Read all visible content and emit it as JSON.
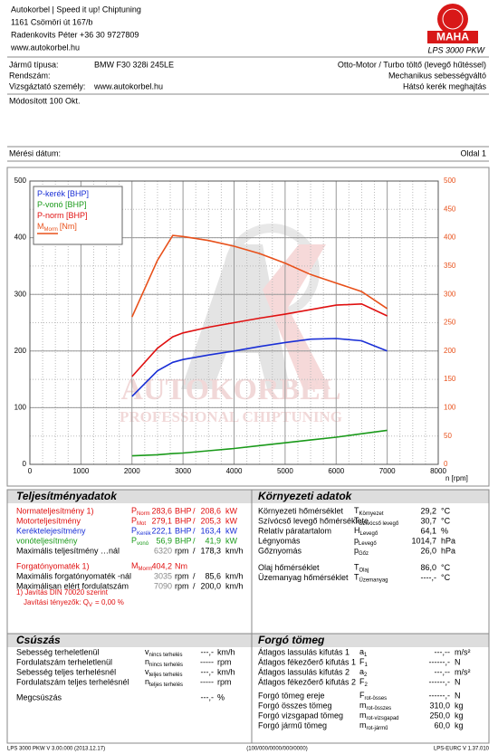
{
  "header": {
    "lines": [
      "Autokorbel | Speed it up! Chiptuning",
      "1161 Csömöri út 167/b",
      "Radenkovits Péter +36 30 9727809",
      "www.autokorbel.hu"
    ],
    "logo_brand": "MAHA",
    "logo_model": "LPS 3000 PKW"
  },
  "vehicle": {
    "left": [
      {
        "label": "Jármű típusa:",
        "value": "BMW F30 328i 245LE"
      },
      {
        "label": "Rendszám:"
      },
      {
        "label": "Vizsgáztató személy:",
        "value": "www.autokorbel.hu"
      }
    ],
    "right": [
      "Otto-Motor / Turbo töltő (levegő hűtéssel)",
      "Mechanikus sebességváltó",
      "Hátsó kerék meghajtás"
    ]
  },
  "note": "Módosított 100 Okt.",
  "measurement": {
    "label": "Mérési dátum:",
    "page": "Oldal 1"
  },
  "watermark": {
    "title": "AUTOKORBEL",
    "subtitle": "PROFESSIONAL CHIPTUNING"
  },
  "chart_data": {
    "type": "line",
    "x_label": "n [rpm]",
    "xlim": [
      0,
      8000
    ],
    "xticks": [
      0,
      1000,
      2000,
      3000,
      4000,
      5000,
      6000,
      7000,
      8000
    ],
    "ylim": [
      0,
      500
    ],
    "yticks": [
      0,
      100,
      200,
      300,
      400,
      500
    ],
    "y2lim": [
      0,
      500
    ],
    "y2ticks": [
      0,
      50,
      100,
      150,
      200,
      250,
      300,
      350,
      400,
      450,
      500
    ],
    "y2_color": "#e8501a",
    "grid": true,
    "x": [
      2000,
      2500,
      2800,
      3000,
      3500,
      4000,
      4500,
      5000,
      5500,
      6000,
      6500,
      7000
    ],
    "series": [
      {
        "name": "P-kerék [BHP]",
        "color": "#1a2fd6",
        "values": [
          120,
          165,
          180,
          185,
          193,
          200,
          208,
          215,
          221,
          222,
          218,
          200
        ]
      },
      {
        "name": "P-vonó [BHP]",
        "color": "#1a9a1a",
        "values": [
          15,
          17,
          19,
          20,
          24,
          28,
          33,
          38,
          43,
          48,
          54,
          60
        ]
      },
      {
        "name": "P-norm [BHP]",
        "color": "#e01010",
        "values": [
          155,
          205,
          225,
          232,
          242,
          250,
          258,
          265,
          273,
          281,
          283,
          262
        ]
      },
      {
        "name": "M",
        "name_sub": "Morm",
        "name_unit": "[Nm]",
        "color": "#e8501a",
        "axis": "y2",
        "values": [
          260,
          360,
          404,
          402,
          395,
          385,
          372,
          355,
          335,
          320,
          305,
          275
        ]
      }
    ]
  },
  "power": {
    "title": "Teljesítményadatok",
    "rows": [
      {
        "label": "Normateljesítmény 1)",
        "color": "#e01010",
        "sym": "P",
        "sub": "Norm",
        "v1": "283,6",
        "u1": "BHP",
        "sep": "/",
        "v2": "208,6",
        "u2": "kW"
      },
      {
        "label": "Motorteljesítmény",
        "color": "#e01010",
        "sym": "P",
        "sub": "Mot",
        "v1": "279,1",
        "u1": "BHP",
        "sep": "/",
        "v2": "205,3",
        "u2": "kW"
      },
      {
        "label": "Keréktelejesítmény",
        "color": "#1a2fd6",
        "sym": "P",
        "sub": "Kerék",
        "v1": "222,1",
        "u1": "BHP",
        "sep": "/",
        "v2": "163,4",
        "u2": "kW"
      },
      {
        "label": "vonóteljesítmény",
        "color": "#1a9a1a",
        "sym": "P",
        "sub": "vonó",
        "v1": "56,9",
        "u1": "BHP",
        "sep": "/",
        "v2": "41,9",
        "u2": "kW"
      },
      {
        "label": "Maximális teljesítmény …nál",
        "color": "#000000",
        "value_color": "#888888",
        "v1": "6320",
        "u1": "rpm",
        "sep": "/",
        "v2": "178,3",
        "u2": "km/h"
      },
      {
        "label": "Forgatónyomaték 1)",
        "color": "#e01010",
        "sym": "M",
        "sub": "Morm",
        "v1": "404,2",
        "u1": "Nm"
      },
      {
        "label": "Maximális forgatónyomaték -nál",
        "color": "#000000",
        "value_color": "#888888",
        "v1": "3035",
        "u1": "rpm",
        "sep": "/",
        "v2": "85,6",
        "u2": "km/h"
      },
      {
        "label": "Maximálisan elért fordulatszám",
        "color": "#000000",
        "value_color": "#888888",
        "v1": "7090",
        "u1": "rpm",
        "sep": "/",
        "v2": "200,0",
        "u2": "km/h"
      }
    ],
    "footnote": "1) Javítás DIN 70020 szerint",
    "factor": {
      "text": "Javítási tényezők: Q",
      "sub": "V",
      "rest": "=   0,00 %"
    }
  },
  "environment": {
    "title": "Környezeti adatok",
    "rows": [
      {
        "label": "Környezeti hőmérséklet",
        "sym": "T",
        "sub": "Környezet",
        "v1": "29,2",
        "u1": "°C"
      },
      {
        "label": "Szívócső levegő hőmérséklete",
        "sym": "T",
        "sub": "Szívócső levegő",
        "v1": "30,7",
        "u1": "°C"
      },
      {
        "label": "Relatív páratartalom",
        "sym": "H",
        "sub": "Levegő",
        "v1": "64,1",
        "u1": "%"
      },
      {
        "label": "Légnyomás",
        "sym": "p",
        "sub": "Levegő",
        "v1": "1014,7",
        "u1": "hPa"
      },
      {
        "label": "Gőznyomás",
        "sym": "p",
        "sub": "Gőz",
        "v1": "26,0",
        "u1": "hPa"
      },
      {
        "label": "Olaj hőmérséklet",
        "sym": "T",
        "sub": "Olaj",
        "v1": "86,0",
        "u1": "°C"
      },
      {
        "label": "Üzemanyag hőmérséklet",
        "sym": "T",
        "sub": "Üzemanyag",
        "v1": "----,-",
        "u1": "°C"
      }
    ]
  },
  "slip": {
    "title": "Csúszás",
    "rows": [
      {
        "label": "Sebesség terheletlenül",
        "sym": "v",
        "sub": "nincs terhelés",
        "v1": "---,-",
        "u1": "km/h"
      },
      {
        "label": "Fordulatszám terheletlenül",
        "sym": "n",
        "sub": "nincs terhelés",
        "v1": "-----",
        "u1": "rpm"
      },
      {
        "label": "Sebesség teljes terhelésnél",
        "sym": "v",
        "sub": "teljes terhelés",
        "v1": "---,-",
        "u1": "km/h"
      },
      {
        "label": "Fordulatszám teljes terhelésnél",
        "sym": "n",
        "sub": "teljes terhelés",
        "v1": "-----",
        "u1": "rpm"
      },
      {
        "label": "Megcsúszás",
        "v1": "---,-",
        "u1": "%"
      }
    ]
  },
  "mass": {
    "title": "Forgó tömeg",
    "rows": [
      {
        "label": "Átlagos lassulás kifutás 1",
        "sym": "a",
        "sub": "1",
        "v1": "---,--",
        "u1": "m/s²"
      },
      {
        "label": "Átlagos fékezőerő kifutás 1",
        "sym": "F",
        "sub": "1",
        "v1": "------,-",
        "u1": "N"
      },
      {
        "label": "Átlagos lassulás kifutás 2",
        "sym": "a",
        "sub": "2",
        "v1": "---,--",
        "u1": "m/s²"
      },
      {
        "label": "Átlagos fékezőerő kifutás 2",
        "sym": "F",
        "sub": "2",
        "v1": "------,-",
        "u1": "N"
      },
      {
        "label": "Forgó tömeg ereje",
        "sym": "F",
        "sub": "rot-össes",
        "v1": "------,-",
        "u1": "N"
      },
      {
        "label": "Forgó összes tömeg",
        "sym": "m",
        "sub": "rot-összes",
        "v1": "310,0",
        "u1": "kg"
      },
      {
        "label": "Forgó vizsgapad tömeg",
        "sym": "m",
        "sub": "rot-vizsgapad",
        "v1": "250,0",
        "u1": "kg"
      },
      {
        "label": "Forgó jármű tömeg",
        "sym": "m",
        "sub": "rot-jármű",
        "v1": "60,0",
        "u1": "kg"
      }
    ]
  },
  "footer": {
    "left": "LPS 3000 PKW V 3.00.000 (2013.12.17)",
    "center": "(100/000/0000/000/0000)",
    "right": "LPS-EURC V 1.37.010"
  }
}
